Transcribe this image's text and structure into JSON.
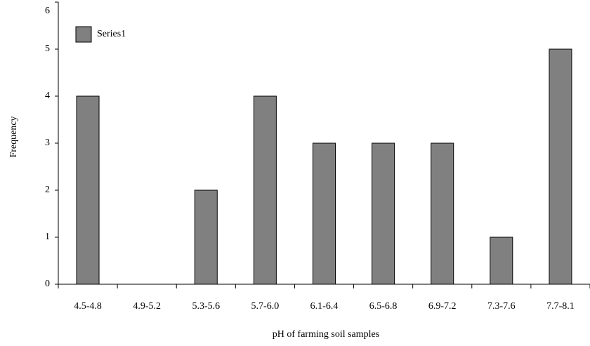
{
  "chart_data": {
    "type": "bar",
    "x_label": "pH of farming soil samples",
    "y_label": "Frequency",
    "categories": [
      "4.5-4.8",
      "4.9-5.2",
      "5.3-5.6",
      "5.7-6.0",
      "6.1-6.4",
      "6.5-6.8",
      "6.9-7.2",
      "7.3-7.6",
      "7.7-8.1"
    ],
    "series": [
      {
        "name": "Series1",
        "color": "#808080",
        "values": [
          4,
          0,
          2,
          4,
          3,
          3,
          3,
          1,
          5
        ]
      }
    ],
    "ylim": [
      0,
      6
    ],
    "yticks": [
      0,
      1,
      2,
      3,
      4,
      5,
      6
    ],
    "grid": false,
    "legend": "top-left"
  }
}
